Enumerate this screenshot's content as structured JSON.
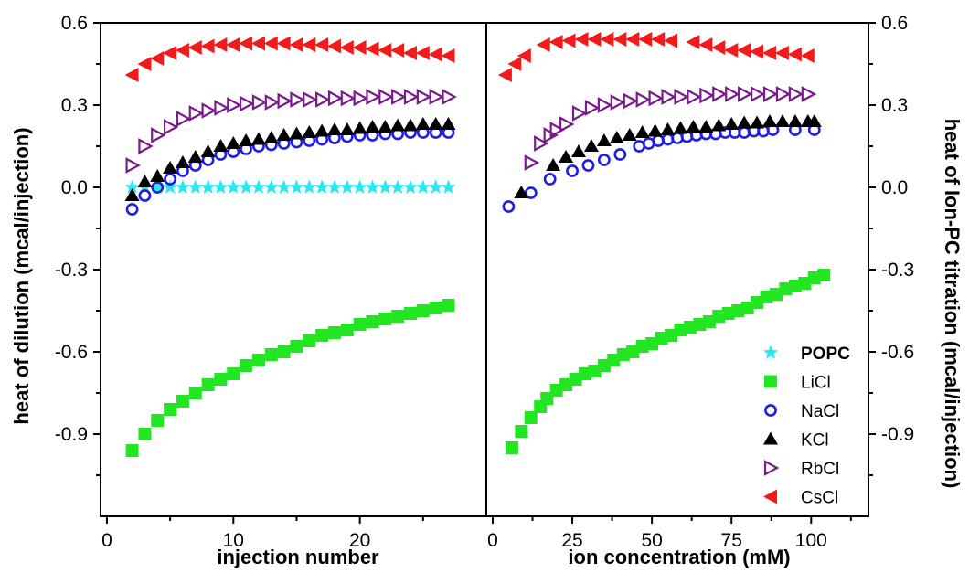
{
  "chart_data": [
    {
      "type": "scatter",
      "xlabel": "injection number",
      "ylabel": "heat of dilution (mcal/injection)",
      "xlim": [
        -0.5,
        30
      ],
      "ylim": [
        -1.2,
        0.6
      ],
      "xticks": [
        0,
        10,
        20
      ],
      "xtick_labels": [
        "0",
        "10",
        "20"
      ],
      "yticks": [
        0.6,
        0.3,
        0.0,
        -0.3,
        -0.6,
        -0.9
      ],
      "ytick_labels": [
        "0.6",
        "0.3",
        "0.0",
        "-0.3",
        "-0.6",
        "-0.9"
      ],
      "series": [
        {
          "name": "POPC",
          "x": [
            2,
            3,
            4,
            5,
            6,
            7,
            8,
            9,
            10,
            11,
            12,
            13,
            14,
            15,
            16,
            17,
            18,
            19,
            20,
            21,
            22,
            23,
            24,
            25,
            26,
            27
          ],
          "values": [
            0.0,
            0.0,
            0.0,
            0.0,
            0.0,
            0.0,
            0.0,
            0.0,
            0.0,
            0.0,
            0.0,
            0.0,
            0.0,
            0.0,
            0.0,
            0.0,
            0.0,
            0.0,
            0.0,
            0.0,
            0.0,
            0.0,
            0.0,
            0.0,
            0.0,
            0.0
          ]
        },
        {
          "name": "LiCl",
          "x": [
            2,
            3,
            4,
            5,
            6,
            7,
            8,
            9,
            10,
            11,
            12,
            13,
            14,
            15,
            16,
            17,
            18,
            19,
            20,
            21,
            22,
            23,
            24,
            25,
            26,
            27
          ],
          "values": [
            -0.96,
            -0.9,
            -0.85,
            -0.81,
            -0.78,
            -0.75,
            -0.72,
            -0.7,
            -0.68,
            -0.65,
            -0.63,
            -0.61,
            -0.6,
            -0.58,
            -0.56,
            -0.54,
            -0.53,
            -0.52,
            -0.5,
            -0.49,
            -0.48,
            -0.47,
            -0.46,
            -0.45,
            -0.44,
            -0.43
          ]
        },
        {
          "name": "NaCl",
          "x": [
            2,
            3,
            4,
            5,
            6,
            7,
            8,
            9,
            10,
            11,
            12,
            13,
            14,
            15,
            16,
            17,
            18,
            19,
            20,
            21,
            22,
            23,
            24,
            25,
            26,
            27
          ],
          "values": [
            -0.08,
            -0.03,
            0.0,
            0.03,
            0.06,
            0.08,
            0.1,
            0.12,
            0.13,
            0.14,
            0.15,
            0.155,
            0.16,
            0.165,
            0.17,
            0.175,
            0.18,
            0.185,
            0.19,
            0.19,
            0.195,
            0.195,
            0.2,
            0.2,
            0.2,
            0.2
          ]
        },
        {
          "name": "KCl",
          "x": [
            2,
            3,
            4,
            5,
            6,
            7,
            8,
            9,
            10,
            11,
            12,
            13,
            14,
            15,
            16,
            17,
            18,
            19,
            20,
            21,
            22,
            23,
            24,
            25,
            26,
            27
          ],
          "values": [
            -0.03,
            0.02,
            0.04,
            0.07,
            0.09,
            0.11,
            0.13,
            0.15,
            0.16,
            0.17,
            0.175,
            0.18,
            0.19,
            0.195,
            0.2,
            0.205,
            0.21,
            0.21,
            0.215,
            0.22,
            0.22,
            0.225,
            0.225,
            0.23,
            0.23,
            0.23
          ]
        },
        {
          "name": "RbCl",
          "x": [
            2,
            3,
            4,
            5,
            6,
            7,
            8,
            9,
            10,
            11,
            12,
            13,
            14,
            15,
            16,
            17,
            18,
            19,
            20,
            21,
            22,
            23,
            24,
            25,
            26,
            27
          ],
          "values": [
            0.08,
            0.15,
            0.19,
            0.22,
            0.25,
            0.27,
            0.28,
            0.29,
            0.3,
            0.305,
            0.31,
            0.31,
            0.315,
            0.32,
            0.32,
            0.32,
            0.325,
            0.325,
            0.325,
            0.33,
            0.33,
            0.33,
            0.33,
            0.33,
            0.33,
            0.33
          ]
        },
        {
          "name": "CsCl",
          "x": [
            2,
            3,
            4,
            5,
            6,
            7,
            8,
            9,
            10,
            11,
            12,
            13,
            14,
            15,
            16,
            17,
            18,
            19,
            20,
            21,
            22,
            23,
            24,
            25,
            26,
            27
          ],
          "values": [
            0.41,
            0.45,
            0.47,
            0.49,
            0.5,
            0.51,
            0.515,
            0.52,
            0.52,
            0.525,
            0.525,
            0.525,
            0.525,
            0.52,
            0.52,
            0.52,
            0.515,
            0.51,
            0.51,
            0.505,
            0.5,
            0.5,
            0.49,
            0.49,
            0.485,
            0.48
          ]
        }
      ]
    },
    {
      "type": "scatter",
      "xlabel": "ion concentration (mM)",
      "ylabel": "heat of Ion-PC titration (mcal/injection)",
      "xlim": [
        -2,
        118
      ],
      "ylim": [
        -1.2,
        0.6
      ],
      "xticks": [
        0,
        25,
        50,
        75,
        100
      ],
      "xtick_labels": [
        "0",
        "25",
        "50",
        "75",
        "100"
      ],
      "yticks": [
        0.6,
        0.3,
        0.0,
        -0.3,
        -0.6,
        -0.9
      ],
      "ytick_labels": [
        "0.6",
        "0.3",
        "0.0",
        "-0.3",
        "-0.6",
        "-0.9"
      ],
      "legend_position": "lower-right",
      "series": [
        {
          "name": "POPC",
          "x": [],
          "values": []
        },
        {
          "name": "LiCl",
          "x": [
            6,
            9,
            12,
            15,
            17,
            20,
            23,
            26,
            29,
            32,
            35,
            38,
            41,
            44,
            47,
            50,
            53,
            56,
            59,
            62,
            65,
            68,
            71,
            74,
            77,
            80,
            83,
            86,
            89,
            92,
            95,
            98,
            101,
            104
          ],
          "values": [
            -0.95,
            -0.89,
            -0.84,
            -0.8,
            -0.77,
            -0.74,
            -0.72,
            -0.7,
            -0.68,
            -0.67,
            -0.65,
            -0.63,
            -0.61,
            -0.6,
            -0.58,
            -0.57,
            -0.55,
            -0.54,
            -0.52,
            -0.51,
            -0.5,
            -0.49,
            -0.47,
            -0.46,
            -0.45,
            -0.44,
            -0.42,
            -0.4,
            -0.39,
            -0.37,
            -0.36,
            -0.35,
            -0.33,
            -0.32
          ]
        },
        {
          "name": "NaCl",
          "x": [
            5,
            12,
            18,
            25,
            30,
            35,
            40,
            46,
            49,
            52,
            55,
            58,
            61,
            64,
            67,
            70,
            73,
            76,
            79,
            82,
            85,
            88,
            95,
            101
          ],
          "values": [
            -0.07,
            -0.02,
            0.03,
            0.06,
            0.08,
            0.1,
            0.12,
            0.15,
            0.16,
            0.17,
            0.175,
            0.18,
            0.185,
            0.19,
            0.195,
            0.195,
            0.2,
            0.2,
            0.2,
            0.205,
            0.205,
            0.21,
            0.21,
            0.21
          ]
        },
        {
          "name": "KCl",
          "x": [
            9,
            19,
            23,
            27,
            31,
            35,
            39,
            43,
            47,
            51,
            55,
            59,
            63,
            67,
            71,
            75,
            79,
            83,
            87,
            91,
            95,
            99,
            101
          ],
          "values": [
            -0.02,
            0.08,
            0.11,
            0.13,
            0.15,
            0.17,
            0.18,
            0.19,
            0.2,
            0.205,
            0.21,
            0.215,
            0.22,
            0.22,
            0.225,
            0.23,
            0.235,
            0.235,
            0.24,
            0.24,
            0.24,
            0.24,
            0.24
          ]
        },
        {
          "name": "RbCl",
          "x": [
            12,
            15,
            18,
            20,
            23,
            27,
            31,
            35,
            39,
            43,
            47,
            51,
            55,
            59,
            63,
            67,
            71,
            75,
            79,
            83,
            87,
            91,
            95,
            99
          ],
          "values": [
            0.09,
            0.16,
            0.19,
            0.21,
            0.23,
            0.27,
            0.29,
            0.3,
            0.31,
            0.315,
            0.32,
            0.325,
            0.33,
            0.33,
            0.33,
            0.335,
            0.34,
            0.34,
            0.34,
            0.34,
            0.34,
            0.34,
            0.34,
            0.34
          ]
        },
        {
          "name": "CsCl",
          "x": [
            4,
            7,
            10,
            16,
            20,
            24,
            28,
            32,
            36,
            40,
            44,
            48,
            52,
            56,
            63,
            67,
            71,
            75,
            79,
            83,
            87,
            91,
            95,
            99
          ],
          "values": [
            0.41,
            0.45,
            0.48,
            0.52,
            0.53,
            0.535,
            0.54,
            0.54,
            0.54,
            0.54,
            0.54,
            0.54,
            0.54,
            0.535,
            0.53,
            0.52,
            0.51,
            0.5,
            0.5,
            0.495,
            0.49,
            0.49,
            0.485,
            0.48
          ]
        }
      ]
    }
  ],
  "legend": [
    {
      "label": "POPC",
      "marker": "star",
      "color": "#29E6F2",
      "bold": true
    },
    {
      "label": "LiCl",
      "marker": "square",
      "color": "#22E622"
    },
    {
      "label": "NaCl",
      "marker": "circle-open",
      "color": "#1E1EE6"
    },
    {
      "label": "KCl",
      "marker": "triangle-up",
      "color": "#000000"
    },
    {
      "label": "RbCl",
      "marker": "triangle-right-open",
      "color": "#7A1A8C"
    },
    {
      "label": "CsCl",
      "marker": "triangle-left",
      "color": "#F21A1A"
    }
  ],
  "styles": {
    "axis_color": "#000000",
    "series_colors": {
      "POPC": "#29E6F2",
      "LiCl": "#22E622",
      "NaCl": "#1E1EE6",
      "KCl": "#000000",
      "RbCl": "#7A1A8C",
      "CsCl": "#F21A1A"
    }
  }
}
